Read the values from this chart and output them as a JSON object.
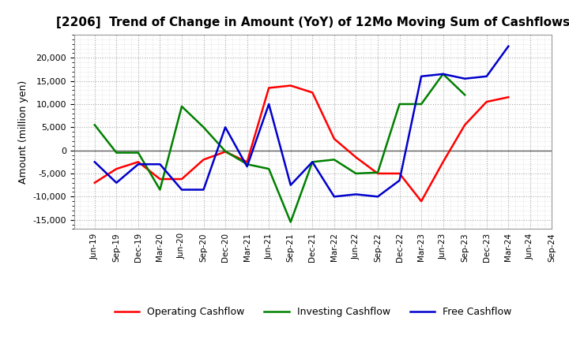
{
  "title": "[2206]  Trend of Change in Amount (YoY) of 12Mo Moving Sum of Cashflows",
  "ylabel": "Amount (million yen)",
  "x_labels": [
    "Jun-19",
    "Sep-19",
    "Dec-19",
    "Mar-20",
    "Jun-20",
    "Sep-20",
    "Dec-20",
    "Mar-21",
    "Jun-21",
    "Sep-21",
    "Dec-21",
    "Mar-22",
    "Jun-22",
    "Sep-22",
    "Dec-22",
    "Mar-23",
    "Jun-23",
    "Sep-23",
    "Dec-23",
    "Mar-24",
    "Jun-24",
    "Sep-24"
  ],
  "operating": [
    -7000,
    -4000,
    -2500,
    -6200,
    -6200,
    -2000,
    -300,
    -2500,
    13500,
    14000,
    12500,
    2500,
    -1500,
    -5000,
    -5000,
    -11000,
    -2500,
    5500,
    10500,
    11500,
    null,
    null
  ],
  "investing": [
    5500,
    -500,
    -500,
    -8500,
    9500,
    5000,
    -200,
    -3000,
    -4000,
    -15500,
    -2500,
    -2000,
    -5000,
    -4800,
    10000,
    10000,
    16500,
    12000,
    null,
    null,
    null,
    null
  ],
  "free": [
    -2500,
    -7000,
    -3000,
    -3000,
    -8500,
    -8500,
    5000,
    -3500,
    10000,
    -7500,
    -2500,
    -10000,
    -9500,
    -10000,
    -6500,
    16000,
    16500,
    15500,
    16000,
    22500,
    null,
    null
  ],
  "ylim": [
    -17000,
    25000
  ],
  "yticks": [
    -15000,
    -10000,
    -5000,
    0,
    5000,
    10000,
    15000,
    20000
  ],
  "operating_color": "#ff0000",
  "investing_color": "#008000",
  "free_color": "#0000cc",
  "bg_color": "#ffffff",
  "zero_line_color": "#606060",
  "grid_color": "#aaaaaa",
  "border_color": "#999999"
}
